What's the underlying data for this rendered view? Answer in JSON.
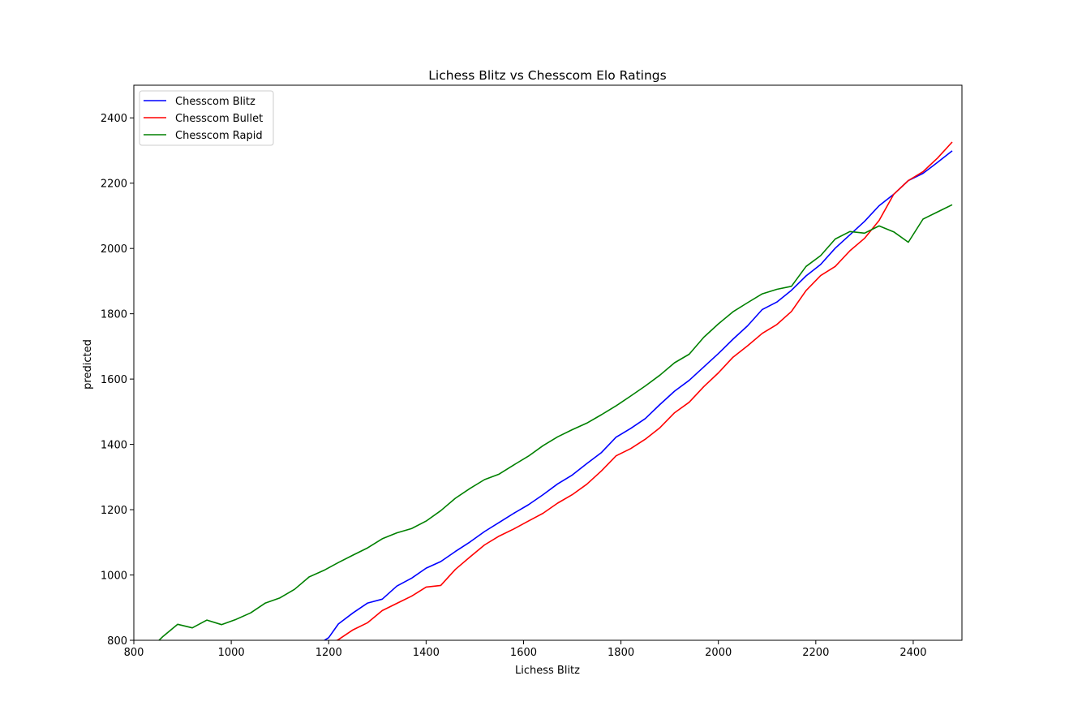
{
  "chart_data": {
    "type": "line",
    "title": "Lichess Blitz vs Chesscom Elo Ratings",
    "xlabel": "Lichess Blitz",
    "ylabel": "predicted",
    "xlim": [
      800,
      2500
    ],
    "ylim": [
      800,
      2500
    ],
    "xticks": [
      "800",
      "1000",
      "1200",
      "1400",
      "1600",
      "1800",
      "2000",
      "2200",
      "2400"
    ],
    "yticks": [
      "800",
      "1000",
      "1200",
      "1400",
      "1600",
      "1800",
      "2000",
      "2200",
      "2400"
    ],
    "grid": false,
    "legend_position": "top-left",
    "series": [
      {
        "name": "Chesscom Blitz",
        "color": "#0000ff",
        "x": [
          1170,
          1200,
          1220,
          1250,
          1280,
          1310,
          1340,
          1370,
          1400,
          1430,
          1460,
          1490,
          1520,
          1550,
          1580,
          1610,
          1640,
          1670,
          1700,
          1730,
          1760,
          1790,
          1820,
          1850,
          1880,
          1910,
          1940,
          1970,
          2000,
          2030,
          2060,
          2090,
          2120,
          2150,
          2180,
          2210,
          2240,
          2270,
          2300,
          2330,
          2360,
          2390,
          2420,
          2450,
          2480
        ],
        "y": [
          780,
          808,
          850,
          884,
          914,
          926,
          966,
          990,
          1021,
          1041,
          1072,
          1101,
          1133,
          1161,
          1189,
          1215,
          1246,
          1279,
          1306,
          1341,
          1375,
          1422,
          1449,
          1479,
          1522,
          1563,
          1596,
          1637,
          1678,
          1722,
          1763,
          1813,
          1836,
          1872,
          1916,
          1951,
          2001,
          2042,
          2083,
          2131,
          2166,
          2208,
          2230,
          2264,
          2299
        ]
      },
      {
        "name": "Chesscom Bullet",
        "color": "#ff0000",
        "x": [
          1190,
          1220,
          1250,
          1280,
          1310,
          1340,
          1370,
          1400,
          1430,
          1460,
          1490,
          1520,
          1550,
          1580,
          1610,
          1640,
          1670,
          1700,
          1730,
          1760,
          1790,
          1820,
          1850,
          1880,
          1910,
          1940,
          1970,
          2000,
          2030,
          2060,
          2090,
          2120,
          2150,
          2180,
          2210,
          2240,
          2270,
          2300,
          2330,
          2360,
          2390,
          2420,
          2450,
          2480
        ],
        "y": [
          780,
          802,
          832,
          854,
          891,
          913,
          935,
          963,
          968,
          1017,
          1055,
          1092,
          1119,
          1141,
          1165,
          1189,
          1220,
          1246,
          1278,
          1319,
          1365,
          1387,
          1416,
          1451,
          1497,
          1529,
          1577,
          1619,
          1667,
          1702,
          1740,
          1767,
          1807,
          1871,
          1917,
          1945,
          1993,
          2031,
          2086,
          2166,
          2208,
          2235,
          2277,
          2326
        ]
      },
      {
        "name": "Chesscom Rapid",
        "color": "#008000",
        "x": [
          845,
          860,
          890,
          920,
          950,
          980,
          1010,
          1040,
          1070,
          1100,
          1130,
          1160,
          1190,
          1220,
          1250,
          1280,
          1310,
          1340,
          1370,
          1400,
          1430,
          1460,
          1490,
          1520,
          1550,
          1580,
          1610,
          1640,
          1670,
          1700,
          1730,
          1760,
          1790,
          1820,
          1850,
          1880,
          1910,
          1940,
          1970,
          2000,
          2030,
          2060,
          2090,
          2120,
          2150,
          2180,
          2210,
          2240,
          2270,
          2300,
          2330,
          2360,
          2390,
          2420,
          2450,
          2480
        ],
        "y": [
          790,
          812,
          849,
          838,
          862,
          848,
          864,
          884,
          914,
          930,
          956,
          994,
          1014,
          1038,
          1061,
          1083,
          1111,
          1129,
          1142,
          1165,
          1197,
          1235,
          1265,
          1292,
          1309,
          1337,
          1364,
          1396,
          1423,
          1445,
          1465,
          1491,
          1518,
          1548,
          1579,
          1612,
          1650,
          1676,
          1728,
          1769,
          1806,
          1834,
          1861,
          1875,
          1884,
          1945,
          1978,
          2029,
          2052,
          2047,
          2069,
          2051,
          2019,
          2090,
          2112,
          2134
        ]
      }
    ]
  }
}
